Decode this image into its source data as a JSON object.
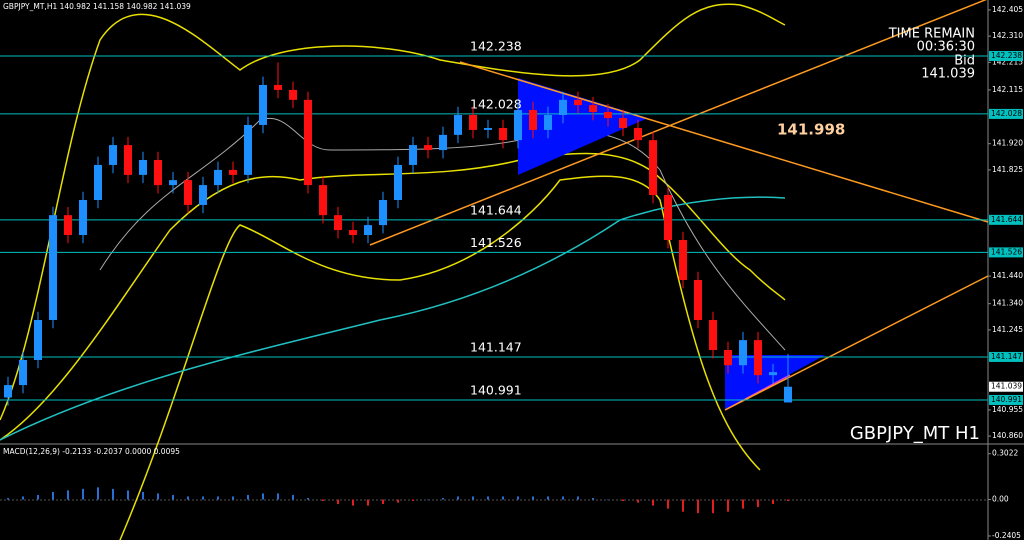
{
  "chart_data": {
    "type": "candlestick",
    "title": "GBPJPY_MT H1",
    "header": "GBPJPY_MT,H1  140.982 141.158 140.982 141.039",
    "time_remain_label": "TIME REMAIN",
    "time_remain": "00:36:30",
    "bid_label": "Bid",
    "bid": 141.039,
    "annotation": 141.998,
    "ylim": [
      140.835,
      142.441
    ],
    "yticks": [
      {
        "value": 142.405,
        "label": "142.405"
      },
      {
        "value": 142.31,
        "label": "142.310"
      },
      {
        "value": 142.215,
        "label": "142.215"
      },
      {
        "value": 142.115,
        "label": "142.115"
      },
      {
        "value": 141.92,
        "label": "141.920"
      },
      {
        "value": 141.825,
        "label": "141.825"
      },
      {
        "value": 141.44,
        "label": "141.440"
      },
      {
        "value": 141.34,
        "label": "141.340"
      },
      {
        "value": 141.245,
        "label": "141.245"
      },
      {
        "value": 140.955,
        "label": "140.955"
      },
      {
        "value": 140.86,
        "label": "140.860"
      }
    ],
    "levels": [
      142.238,
      142.028,
      141.644,
      141.526,
      141.147,
      140.991
    ],
    "level_color": "#00c0c0",
    "up_color": "#1e8fff",
    "down_color": "#ff1010",
    "candles": [
      [
        141.0,
        141.075,
        140.97,
        141.045
      ],
      [
        141.045,
        141.166,
        141.015,
        141.136
      ],
      [
        141.136,
        141.311,
        141.106,
        141.281
      ],
      [
        141.281,
        141.691,
        141.251,
        141.661
      ],
      [
        141.661,
        141.691,
        141.559,
        141.589
      ],
      [
        141.589,
        141.746,
        141.559,
        141.716
      ],
      [
        141.716,
        141.873,
        141.686,
        141.843
      ],
      [
        141.843,
        141.945,
        141.813,
        141.915
      ],
      [
        141.915,
        141.945,
        141.777,
        141.807
      ],
      [
        141.807,
        141.891,
        141.777,
        141.861
      ],
      [
        141.861,
        141.891,
        141.74,
        141.77
      ],
      [
        141.77,
        141.818,
        141.74,
        141.788
      ],
      [
        141.788,
        141.818,
        141.668,
        141.698
      ],
      [
        141.698,
        141.8,
        141.668,
        141.77
      ],
      [
        141.77,
        141.855,
        141.74,
        141.825
      ],
      [
        141.825,
        141.855,
        141.777,
        141.807
      ],
      [
        141.807,
        142.018,
        141.777,
        141.988
      ],
      [
        141.988,
        142.163,
        141.958,
        142.133
      ],
      [
        142.133,
        142.215,
        142.085,
        142.115
      ],
      [
        142.115,
        142.145,
        142.049,
        142.079
      ],
      [
        142.079,
        142.109,
        141.74,
        141.77
      ],
      [
        141.77,
        141.8,
        141.631,
        141.661
      ],
      [
        141.661,
        141.691,
        141.577,
        141.607
      ],
      [
        141.607,
        141.637,
        141.559,
        141.589
      ],
      [
        141.589,
        141.655,
        141.559,
        141.625
      ],
      [
        141.625,
        141.746,
        141.595,
        141.716
      ],
      [
        141.716,
        141.873,
        141.686,
        141.843
      ],
      [
        141.843,
        141.945,
        141.813,
        141.915
      ],
      [
        141.915,
        141.945,
        141.867,
        141.897
      ],
      [
        141.897,
        141.982,
        141.867,
        141.952
      ],
      [
        141.952,
        142.054,
        141.922,
        142.024
      ],
      [
        142.024,
        142.054,
        141.94,
        141.97
      ],
      [
        141.97,
        142.007,
        141.94,
        141.977
      ],
      [
        141.977,
        142.007,
        141.903,
        141.933
      ],
      [
        141.933,
        142.072,
        141.903,
        142.042
      ],
      [
        142.042,
        142.072,
        141.94,
        141.97
      ],
      [
        141.97,
        142.054,
        141.94,
        142.024
      ],
      [
        142.024,
        142.109,
        141.994,
        142.079
      ],
      [
        142.079,
        142.109,
        142.03,
        142.06
      ],
      [
        142.06,
        142.09,
        142.005,
        142.035
      ],
      [
        142.035,
        142.065,
        141.983,
        142.013
      ],
      [
        142.013,
        142.043,
        141.947,
        141.977
      ],
      [
        141.977,
        142.007,
        141.903,
        141.933
      ],
      [
        141.933,
        141.963,
        141.704,
        141.734
      ],
      [
        141.734,
        141.764,
        141.541,
        141.571
      ],
      [
        141.571,
        141.601,
        141.396,
        141.426
      ],
      [
        141.426,
        141.456,
        141.251,
        141.281
      ],
      [
        141.281,
        141.311,
        141.142,
        141.172
      ],
      [
        141.172,
        141.202,
        141.087,
        141.117
      ],
      [
        141.117,
        141.238,
        141.087,
        141.208
      ],
      [
        141.208,
        141.238,
        141.051,
        141.081
      ],
      [
        141.081,
        141.122,
        141.051,
        141.092
      ],
      [
        140.982,
        141.158,
        140.982,
        141.039
      ]
    ],
    "macd": {
      "title": "MACD(12,26,9) -0.2133 -0.2037 0.0000 0.0095",
      "ylim": [
        -0.267,
        0.353
      ],
      "yticks": [
        0.3022,
        {
          "value": 0,
          "label": "0.00"
        },
        -0.2405
      ],
      "up_color": "#2a6fd6",
      "down_color": "#e02020",
      "values": [
        0.01,
        0.02,
        0.03,
        0.05,
        0.06,
        0.07,
        0.08,
        0.07,
        0.06,
        0.05,
        0.04,
        0.03,
        0.02,
        0.02,
        0.02,
        0.02,
        0.03,
        0.04,
        0.04,
        0.03,
        0.01,
        -0.01,
        -0.03,
        -0.04,
        -0.04,
        -0.03,
        -0.02,
        -0.01,
        0.0,
        0.01,
        0.02,
        0.02,
        0.02,
        0.02,
        0.02,
        0.02,
        0.02,
        0.02,
        0.02,
        0.01,
        0.0,
        -0.01,
        -0.02,
        -0.04,
        -0.06,
        -0.08,
        -0.09,
        -0.09,
        -0.08,
        -0.06,
        -0.05,
        -0.03,
        -0.01
      ]
    }
  }
}
